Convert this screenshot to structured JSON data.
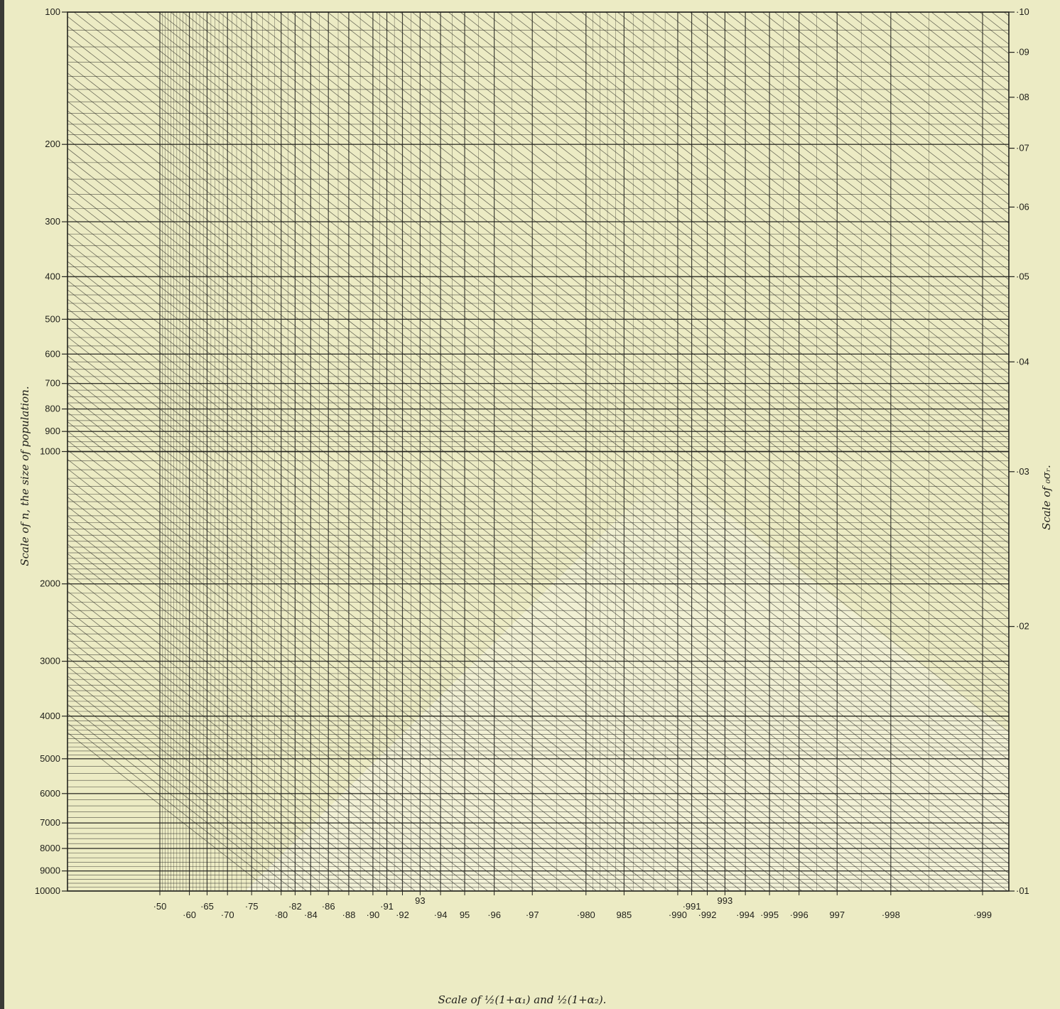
{
  "chart_data": {
    "type": "nomogram",
    "title": "",
    "left_axis": {
      "title": "Scale of n, the size of population.",
      "scale": "log",
      "range": [
        100,
        10000
      ],
      "tick_labels": [
        "100",
        "200",
        "300",
        "400",
        "500",
        "600",
        "700",
        "800",
        "900",
        "1000",
        "2000",
        "3000",
        "4000",
        "5000",
        "6000",
        "7000",
        "8000",
        "9000",
        "10000"
      ],
      "tick_values": [
        100,
        200,
        300,
        400,
        500,
        600,
        700,
        800,
        900,
        1000,
        2000,
        3000,
        4000,
        5000,
        6000,
        7000,
        8000,
        9000,
        10000
      ]
    },
    "right_axis": {
      "title": "Scale of ₀σᵣ.",
      "scale": "log",
      "range": [
        0.01,
        0.1
      ],
      "tick_labels": [
        "·10",
        "·09",
        "·08",
        "·07",
        "·06",
        "·05",
        "·04",
        "·03",
        "·02",
        "·01"
      ],
      "tick_values": [
        0.1,
        0.09,
        0.08,
        0.07,
        0.06,
        0.05,
        0.04,
        0.03,
        0.02,
        0.01
      ]
    },
    "bottom_axis": {
      "title": "Scale of ½(1+α₁) and ½(1+α₂).",
      "tick_labels": [
        {
          "text": "·50",
          "row": 1
        },
        {
          "text": "·60",
          "row": 2
        },
        {
          "text": "·65",
          "row": 1
        },
        {
          "text": "·70",
          "row": 2
        },
        {
          "text": "·75",
          "row": 1
        },
        {
          "text": "·80",
          "row": 2
        },
        {
          "text": "·82",
          "row": 1
        },
        {
          "text": "·84",
          "row": 2
        },
        {
          "text": "·86",
          "row": 1
        },
        {
          "text": "·88",
          "row": 2
        },
        {
          "text": "·90",
          "row": 2
        },
        {
          "text": "·91",
          "row": 1
        },
        {
          "text": "·92",
          "row": 2
        },
        {
          "text": "93",
          "row": 0
        },
        {
          "text": "·94",
          "row": 2
        },
        {
          "text": "95",
          "row": 2
        },
        {
          "text": "·96",
          "row": 2
        },
        {
          "text": "·97",
          "row": 2
        },
        {
          "text": "·980",
          "row": 2
        },
        {
          "text": "985",
          "row": 2
        },
        {
          "text": "·990",
          "row": 2
        },
        {
          "text": "·991",
          "row": 1
        },
        {
          "text": "·992",
          "row": 2
        },
        {
          "text": "993",
          "row": 0
        },
        {
          "text": "·994",
          "row": 2
        },
        {
          "text": "·995",
          "row": 2
        },
        {
          "text": "·996",
          "row": 2
        },
        {
          "text": "997",
          "row": 2
        },
        {
          "text": "·998",
          "row": 2
        },
        {
          "text": "·999",
          "row": 2
        }
      ],
      "tick_values": [
        0.5,
        0.6,
        0.65,
        0.7,
        0.75,
        0.8,
        0.82,
        0.84,
        0.86,
        0.88,
        0.9,
        0.91,
        0.92,
        0.93,
        0.94,
        0.95,
        0.96,
        0.97,
        0.98,
        0.985,
        0.99,
        0.991,
        0.992,
        0.993,
        0.994,
        0.995,
        0.996,
        0.997,
        0.998,
        0.999
      ]
    },
    "grid": true
  },
  "colors": {
    "paper": "#ecebc4",
    "paper_light": "#f3f2dc",
    "ink": "#23231e"
  }
}
